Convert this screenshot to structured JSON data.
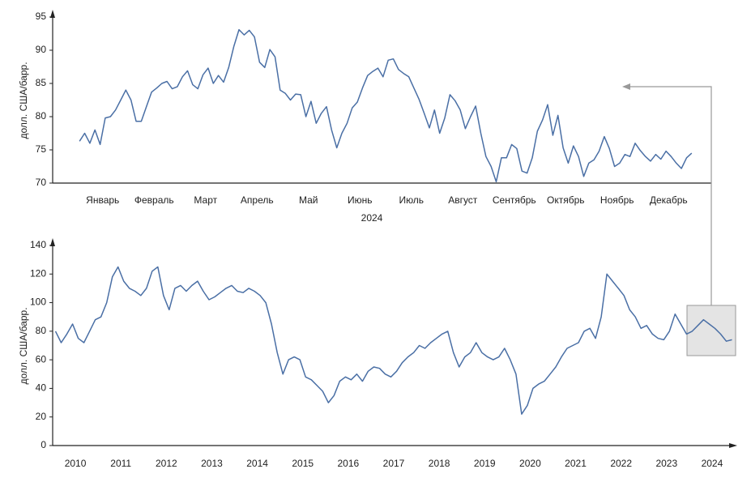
{
  "chart_data": [
    {
      "type": "line",
      "ylabel": "долл. США/барр.",
      "xlabel": "2024",
      "categories": [
        "Январь",
        null,
        null,
        null,
        null,
        null,
        null,
        null,
        null,
        null,
        "Февраль",
        null,
        null,
        null,
        null,
        null,
        null,
        null,
        null,
        null,
        "Март",
        null,
        null,
        null,
        null,
        null,
        null,
        null,
        null,
        null,
        "Апрель",
        null,
        null,
        null,
        null,
        null,
        null,
        null,
        null,
        null,
        "Май",
        null,
        null,
        null,
        null,
        null,
        null,
        null,
        null,
        null,
        "Июнь",
        null,
        null,
        null,
        null,
        null,
        null,
        null,
        null,
        null,
        "Июль",
        null,
        null,
        null,
        null,
        null,
        null,
        null,
        null,
        null,
        "Август",
        null,
        null,
        null,
        null,
        null,
        null,
        null,
        null,
        null,
        "Сентябрь",
        null,
        null,
        null,
        null,
        null,
        null,
        null,
        null,
        null,
        "Октябрь",
        null,
        null,
        null,
        null,
        null,
        null,
        null,
        null,
        null,
        "Ноябрь",
        null,
        null,
        null,
        null,
        null,
        null,
        null,
        null,
        null,
        "Декабрь",
        null,
        null,
        null,
        null,
        null,
        null,
        null,
        null,
        null
      ],
      "values": [
        76.3,
        77.5,
        76.0,
        78.0,
        75.8,
        79.8,
        80.0,
        81.0,
        82.5,
        84.0,
        82.5,
        79.3,
        79.3,
        81.5,
        83.7,
        84.3,
        85.0,
        85.3,
        84.2,
        84.5,
        86.0,
        86.9,
        84.8,
        84.2,
        86.3,
        87.3,
        85.0,
        86.2,
        85.2,
        87.4,
        90.6,
        93.1,
        92.3,
        93.0,
        92.0,
        88.2,
        87.4,
        90.1,
        89.0,
        84.0,
        83.5,
        82.5,
        83.4,
        83.3,
        80.0,
        82.3,
        79.0,
        80.5,
        81.5,
        78.0,
        75.3,
        77.5,
        79.0,
        81.3,
        82.2,
        84.3,
        86.2,
        86.8,
        87.3,
        86.0,
        88.5,
        88.7,
        87.1,
        86.5,
        86.0,
        84.3,
        82.6,
        80.5,
        78.3,
        81.0,
        77.5,
        79.8,
        83.3,
        82.4,
        81.0,
        78.2,
        80.0,
        81.6,
        77.5,
        74.0,
        72.5,
        70.2,
        73.8,
        73.8,
        75.8,
        75.2,
        71.8,
        71.5,
        73.8,
        77.8,
        79.5,
        81.8,
        77.2,
        80.2,
        75.3,
        73.0,
        75.6,
        74.0,
        71.0,
        73.0,
        73.5,
        74.8,
        77.0,
        75.2,
        72.5,
        73.0,
        74.3,
        74.0,
        76.0,
        74.9,
        74.0,
        73.3,
        74.3,
        73.6,
        74.8,
        74.0,
        73.0,
        72.2,
        73.8,
        74.5
      ],
      "color": "#4a6fa5",
      "ylim": [
        70,
        95
      ],
      "yticks": [
        70,
        75,
        80,
        85,
        90,
        95
      ]
    },
    {
      "type": "line",
      "ylabel": "долл. США/барр.",
      "categories": [
        "2010",
        null,
        null,
        null,
        null,
        null,
        null,
        null,
        "2011",
        null,
        null,
        null,
        null,
        null,
        null,
        null,
        "2012",
        null,
        null,
        null,
        null,
        null,
        null,
        null,
        "2013",
        null,
        null,
        null,
        null,
        null,
        null,
        null,
        "2014",
        null,
        null,
        null,
        null,
        null,
        null,
        null,
        "2015",
        null,
        null,
        null,
        null,
        null,
        null,
        null,
        "2016",
        null,
        null,
        null,
        null,
        null,
        null,
        null,
        "2017",
        null,
        null,
        null,
        null,
        null,
        null,
        null,
        "2018",
        null,
        null,
        null,
        null,
        null,
        null,
        null,
        "2019",
        null,
        null,
        null,
        null,
        null,
        null,
        null,
        "2020",
        null,
        null,
        null,
        null,
        null,
        null,
        null,
        "2021",
        null,
        null,
        null,
        null,
        null,
        null,
        null,
        "2022",
        null,
        null,
        null,
        null,
        null,
        null,
        null,
        "2023",
        null,
        null,
        null,
        null,
        null,
        null,
        null,
        "2024",
        null,
        null,
        null,
        null,
        null,
        null,
        null
      ],
      "values": [
        80,
        72,
        78,
        85,
        75,
        72,
        80,
        88,
        90,
        100,
        118,
        125,
        115,
        110,
        108,
        105,
        110,
        122,
        125,
        105,
        95,
        110,
        112,
        108,
        112,
        115,
        108,
        102,
        104,
        107,
        110,
        112,
        108,
        107,
        110,
        108,
        105,
        100,
        85,
        65,
        50,
        60,
        62,
        60,
        48,
        46,
        42,
        38,
        30,
        35,
        45,
        48,
        46,
        50,
        45,
        52,
        55,
        54,
        50,
        48,
        52,
        58,
        62,
        65,
        70,
        68,
        72,
        75,
        78,
        80,
        65,
        55,
        62,
        65,
        72,
        65,
        62,
        60,
        62,
        68,
        60,
        50,
        22,
        28,
        40,
        43,
        45,
        50,
        55,
        62,
        68,
        70,
        72,
        80,
        82,
        75,
        90,
        120,
        115,
        110,
        105,
        95,
        90,
        82,
        84,
        78,
        75,
        74,
        80,
        92,
        85,
        78,
        80,
        84,
        88,
        85,
        82,
        78,
        73,
        74
      ],
      "color": "#4a6fa5",
      "ylim": [
        0,
        140
      ],
      "yticks": [
        0,
        20,
        40,
        60,
        80,
        100,
        120,
        140
      ]
    }
  ]
}
